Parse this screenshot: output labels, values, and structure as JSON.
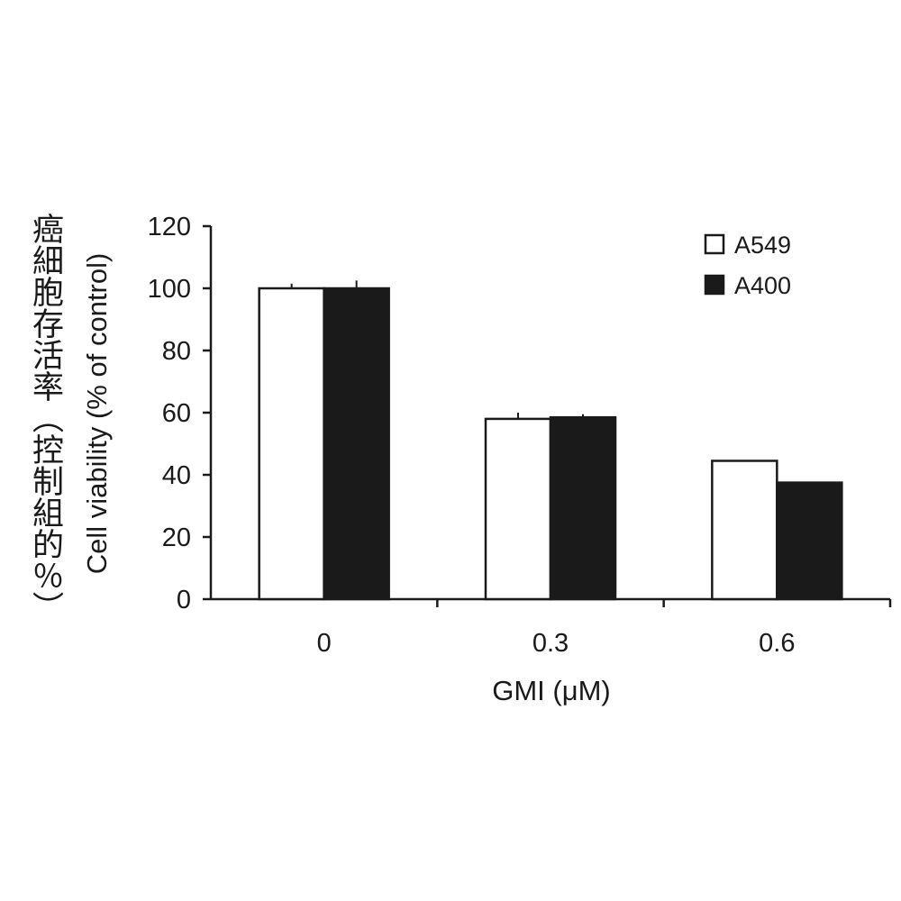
{
  "chart_data": {
    "type": "bar",
    "categories": [
      "0",
      "0.3",
      "0.6"
    ],
    "series": [
      {
        "name": "A549",
        "values": [
          100,
          58,
          44.5
        ],
        "errors": [
          1.5,
          2,
          0
        ],
        "color": "#ffffff"
      },
      {
        "name": "A400",
        "values": [
          100,
          58.5,
          37.5
        ],
        "errors": [
          2.5,
          1,
          0
        ],
        "color": "#1a1a1a"
      }
    ],
    "xlabel": "GMI (μM)",
    "ylabel": "Cell viability (% of control)",
    "ylabel_secondary": "癌細胞存活率（控制組的％）",
    "ylim": [
      0,
      120
    ],
    "yticks": [
      0,
      20,
      40,
      60,
      80,
      100,
      120
    ],
    "grid": false,
    "legend_position": "top-right"
  }
}
